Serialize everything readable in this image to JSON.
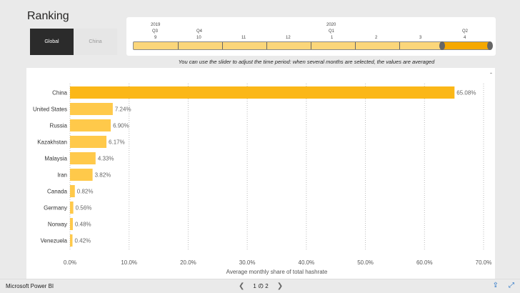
{
  "page_title": "Ranking",
  "toggle": {
    "options": [
      "Global",
      "China"
    ],
    "selected": "Global"
  },
  "slicer": {
    "years": [
      "2019",
      "2020"
    ],
    "quarters": [
      "Q3",
      "Q4",
      "Q1",
      "Q2"
    ],
    "months": [
      "9",
      "10",
      "11",
      "12",
      "1",
      "2",
      "3",
      "4"
    ],
    "hint": "You can use the slider to adjust the time period: when several months are selected, the values are averaged",
    "selected_months": [
      "4"
    ]
  },
  "panel_more": "-",
  "chart_data": {
    "type": "bar",
    "orientation": "horizontal",
    "categories": [
      "China",
      "United States",
      "Russia",
      "Kazakhstan",
      "Malaysia",
      "Iran",
      "Canada",
      "Germany",
      "Norway",
      "Venezuela"
    ],
    "values": [
      65.08,
      7.24,
      6.9,
      6.17,
      4.33,
      3.82,
      0.82,
      0.56,
      0.48,
      0.42
    ],
    "value_labels": [
      "65.08%",
      "7.24%",
      "6.90%",
      "6.17%",
      "4.33%",
      "3.82%",
      "0.82%",
      "0.56%",
      "0.48%",
      "0.42%"
    ],
    "xlabel": "Average monthly share of total hashrate",
    "ylabel": "",
    "xlim": [
      0,
      70
    ],
    "ticks": [
      "0.0%",
      "10.0%",
      "20.0%",
      "30.0%",
      "40.0%",
      "50.0%",
      "60.0%",
      "70.0%"
    ],
    "grid": "vertical-dotted",
    "colors": {
      "top_bar": "#fbb717",
      "other_bars": "#ffc94a"
    }
  },
  "footer": {
    "app_name": "Microsoft Power BI",
    "pager": "1 の 2"
  }
}
